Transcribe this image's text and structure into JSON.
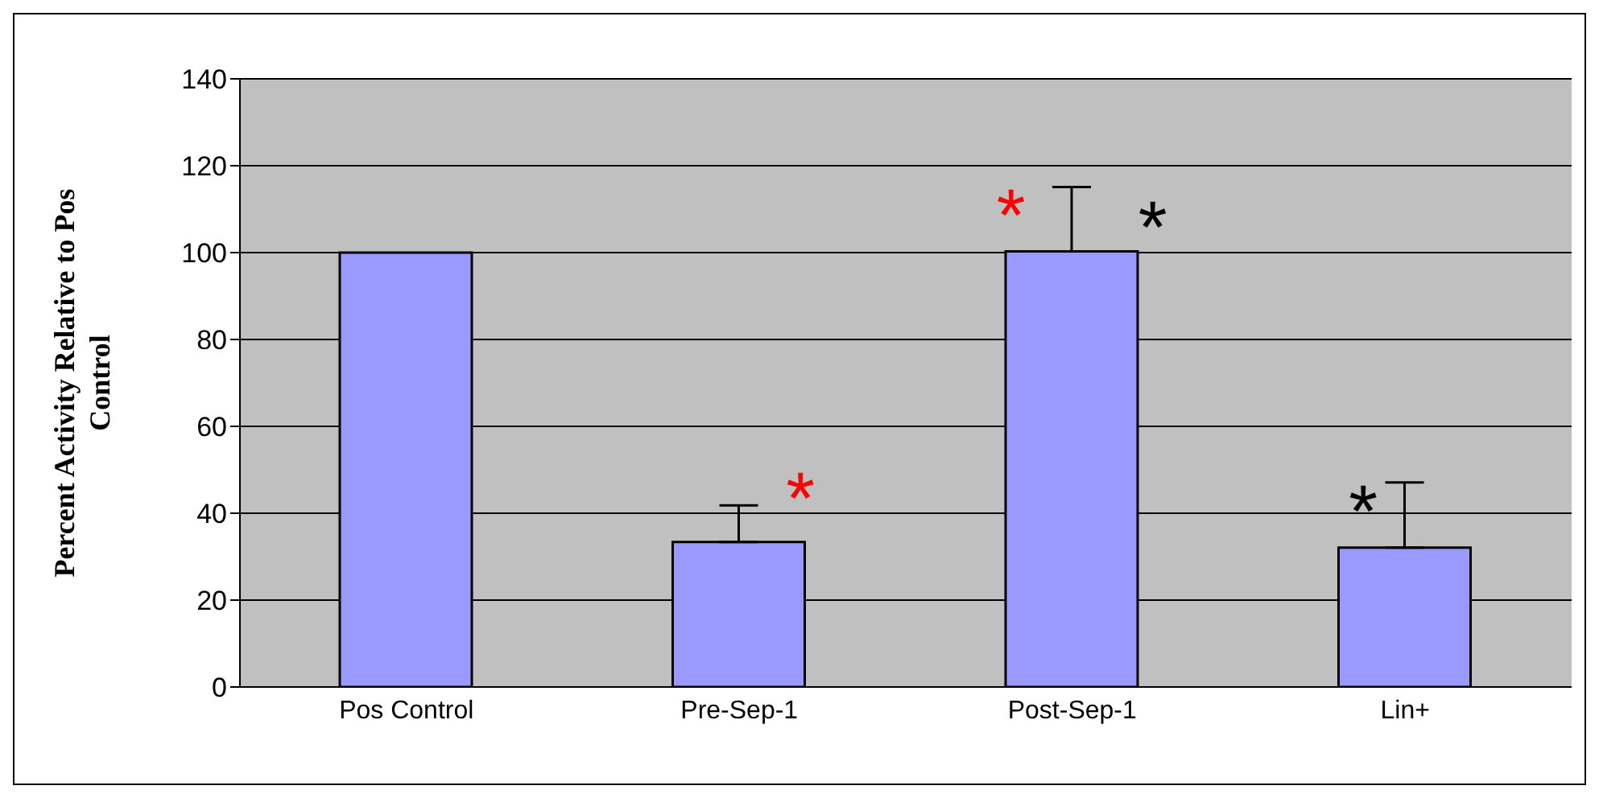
{
  "chart_data": {
    "type": "bar",
    "ylabel": "Percent Activity Relative to Pos Control",
    "categories": [
      "Pos Control",
      "Pre-Sep-1",
      "Post-Sep-1",
      "Lin+"
    ],
    "values": [
      100,
      33.4,
      100.3,
      32.1
    ],
    "errors": [
      null,
      [
        33.4,
        41.8
      ],
      [
        100.3,
        115.1
      ],
      [
        32.1,
        47.1
      ]
    ],
    "color": "#9999ff",
    "ylim": [
      0,
      140
    ],
    "yticks": [
      0,
      20,
      40,
      60,
      80,
      100,
      120,
      140
    ],
    "grid": "y",
    "annotations": [
      "*",
      "*",
      "*",
      "*"
    ]
  }
}
